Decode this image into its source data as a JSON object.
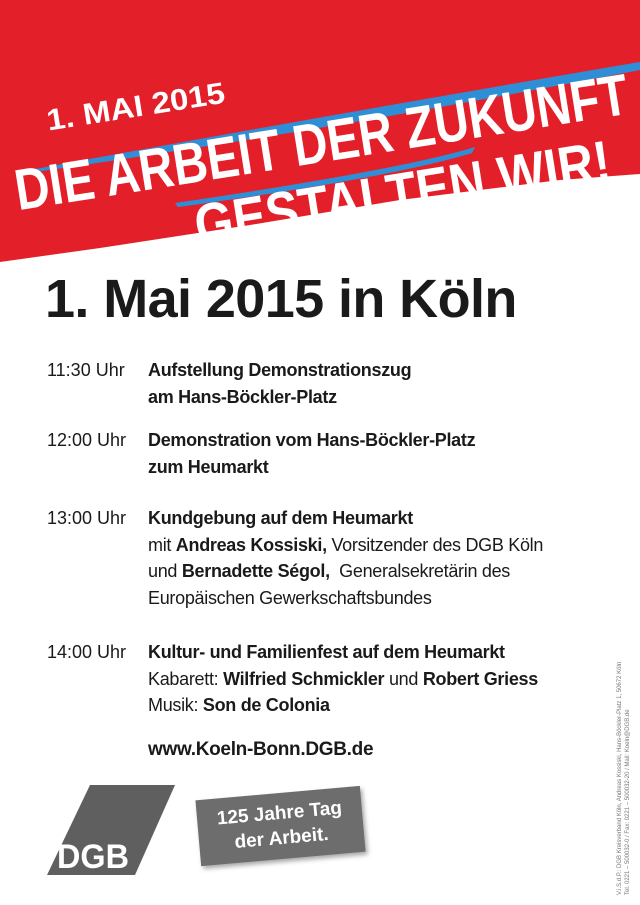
{
  "banner": {
    "date": "1. MAI 2015",
    "line1": "DIE ARBEIT DER ZUKUNFT",
    "line2": "GESTALTEN WIR!",
    "red": "#e3202a",
    "blue": "#2f8fd6"
  },
  "headline": "1. Mai 2015 in Köln",
  "schedule": [
    {
      "time": "11:30 Uhr",
      "lines": [
        [
          {
            "t": "Aufstellung Demonstrationszug",
            "b": true
          }
        ],
        [
          {
            "t": "am Hans-Böckler-Platz",
            "b": true
          }
        ]
      ]
    },
    {
      "time": "12:00 Uhr",
      "lines": [
        [
          {
            "t": "Demonstration vom Hans-Böckler-Platz",
            "b": true
          }
        ],
        [
          {
            "t": "zum Heumarkt",
            "b": true
          }
        ]
      ]
    },
    {
      "time": "13:00 Uhr",
      "lines": [
        [
          {
            "t": "Kundgebung auf dem Heumarkt",
            "b": true
          }
        ],
        [
          {
            "t": "mit ",
            "b": false
          },
          {
            "t": "Andreas Kossiski,",
            "b": true
          },
          {
            "t": " Vorsitzender des DGB Köln",
            "b": false
          }
        ],
        [
          {
            "t": "und ",
            "b": false
          },
          {
            "t": "Bernadette Ségol,",
            "b": true
          },
          {
            "t": "  Generalsekretärin des",
            "b": false
          }
        ],
        [
          {
            "t": "Europäischen Gewerkschaftsbundes",
            "b": false
          }
        ]
      ]
    },
    {
      "time": "14:00 Uhr",
      "lines": [
        [
          {
            "t": "Kultur- und Familienfest auf dem Heumarkt",
            "b": true
          }
        ],
        [
          {
            "t": "Kabarett: ",
            "b": false
          },
          {
            "t": "Wilfried Schmickler",
            "b": true
          },
          {
            "t": " und ",
            "b": false
          },
          {
            "t": "Robert Griess",
            "b": true
          }
        ],
        [
          {
            "t": "Musik: ",
            "b": false
          },
          {
            "t": "Son de Colonia",
            "b": true
          }
        ]
      ]
    }
  ],
  "url": "www.Koeln-Bonn.DGB.de",
  "logo": {
    "text": "DGB",
    "color": "#5f5f5f"
  },
  "badge": {
    "line1": "125 Jahre Tag",
    "line2": "der Arbeit."
  },
  "imprint": {
    "line1": "V.i.S.d.P.: DGB Kreisverband Köln, Andreas Kossiski, Hans-Böckler-Platz 1, 50672 Köln",
    "line2": "Tel. 0221 – 500032-0 / Fax: 0221 – 500032-20 / Mail: Koeln@DGB.de"
  }
}
